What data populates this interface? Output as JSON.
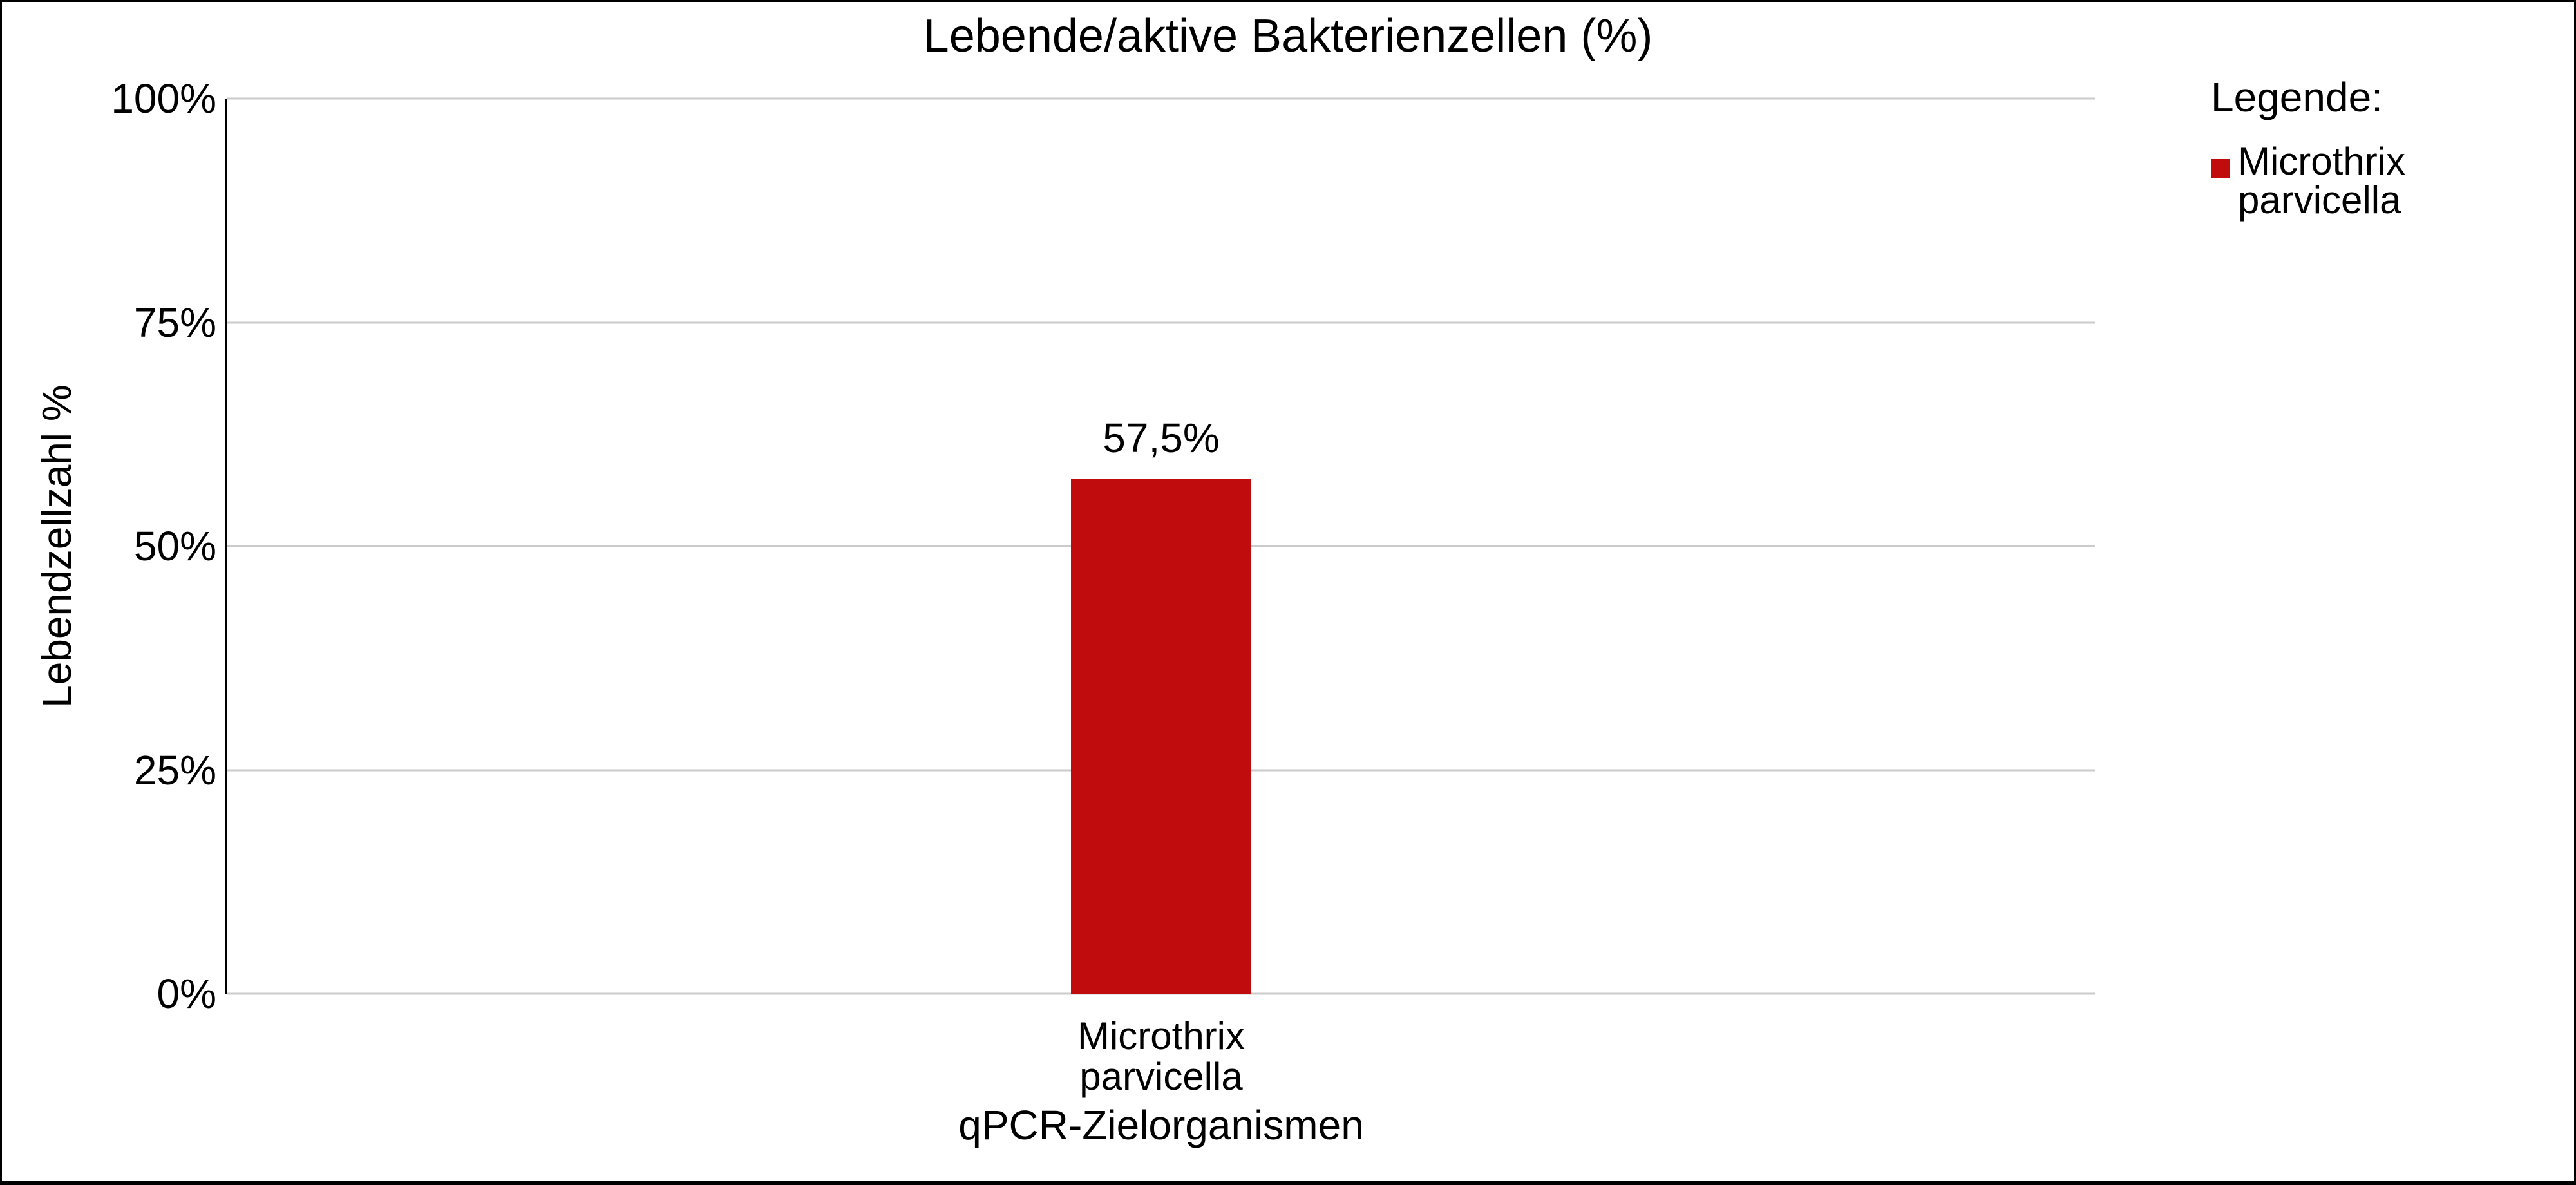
{
  "chart_data": {
    "type": "bar",
    "title": "Lebende/aktive Bakterienzellen (%)",
    "xlabel": "qPCR-Zielorganismen",
    "ylabel": "Lebendzellzahl %",
    "categories": [
      "Microthrix parvicella"
    ],
    "values": [
      57.5
    ],
    "value_labels": [
      "57,5%"
    ],
    "ylim": [
      0,
      100
    ],
    "ytick_labels_top_to_bottom": [
      "100%",
      "75%",
      "50%",
      "25%",
      "0%"
    ],
    "grid": "horizontal",
    "legend_position": "top-right-outside",
    "colors": {
      "bar": "#c00c0c",
      "gridline": "#cbcbcb",
      "axis_line": "#000000",
      "text": "#000000",
      "background": "#ffffff",
      "border": "#000000"
    }
  },
  "legend": {
    "title": "Legende:",
    "items": [
      {
        "label": "Microthrix parvicella",
        "swatch_color": "#c00c0c"
      }
    ]
  }
}
